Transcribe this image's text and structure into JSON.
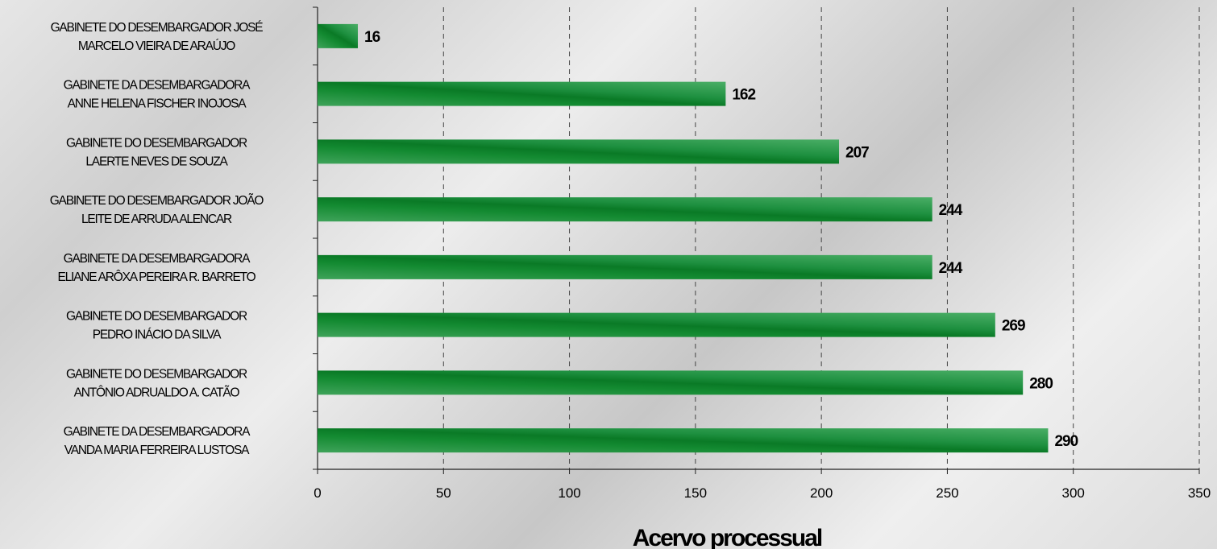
{
  "chart_data": {
    "type": "bar",
    "orientation": "horizontal",
    "title": "",
    "xlabel": "Acervo processual",
    "ylabel": "",
    "xlim": [
      0,
      350
    ],
    "x_ticks": [
      0,
      50,
      100,
      150,
      200,
      250,
      300,
      350
    ],
    "grid": "vertical dashed",
    "categories": [
      [
        "GABINETE DO DESEMBARGADOR JOSÉ",
        "MARCELO VIEIRA DE ARAÚJO"
      ],
      [
        "GABINETE DA DESEMBARGADORA",
        "ANNE HELENA FISCHER INOJOSA"
      ],
      [
        "GABINETE DO DESEMBARGADOR",
        "LAERTE NEVES DE SOUZA"
      ],
      [
        "GABINETE DO DESEMBARGADOR JOÃO",
        "LEITE DE ARRUDA ALENCAR"
      ],
      [
        "GABINETE DA DESEMBARGADORA",
        "ELIANE ARÔXA PEREIRA R. BARRETO"
      ],
      [
        "GABINETE DO DESEMBARGADOR",
        "PEDRO INÁCIO DA SILVA"
      ],
      [
        "GABINETE DO DESEMBARGADOR",
        "ANTÔNIO ADRUALDO A. CATÃO"
      ],
      [
        "GABINETE DA DESEMBARGADORA",
        "VANDA MARIA FERREIRA LUSTOSA"
      ]
    ],
    "values": [
      16,
      162,
      207,
      244,
      244,
      269,
      280,
      290
    ],
    "colors": {
      "bar_dark": "#0e7a2a",
      "bar_light": "#3fa35a",
      "grid": "#444444"
    }
  }
}
